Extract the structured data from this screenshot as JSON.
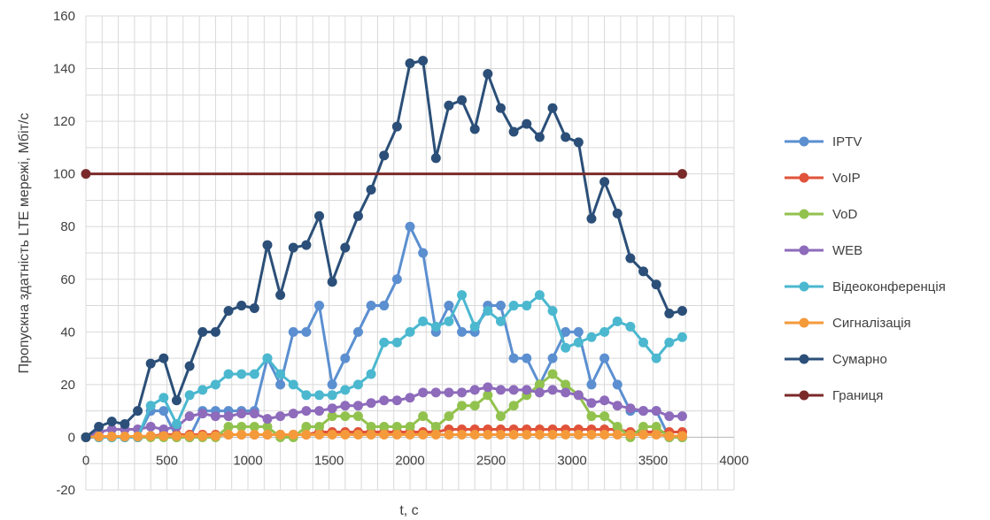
{
  "chart_data": {
    "type": "line",
    "xlabel": "t, с",
    "ylabel": "Пропускна здатність LTE мережі, Мбіт/с",
    "xlim": [
      0,
      4000
    ],
    "ylim": [
      -20,
      160
    ],
    "xticks": [
      "0",
      "500",
      "1000",
      "1500",
      "2000",
      "2500",
      "3000",
      "3500",
      "4000"
    ],
    "yticks": [
      "-20",
      "0",
      "20",
      "40",
      "60",
      "80",
      "100",
      "120",
      "140",
      "160"
    ],
    "grid": "on",
    "legend_position": "right",
    "x": [
      0,
      80,
      160,
      240,
      320,
      400,
      480,
      560,
      640,
      720,
      800,
      880,
      960,
      1040,
      1120,
      1200,
      1280,
      1360,
      1440,
      1520,
      1600,
      1680,
      1760,
      1840,
      1920,
      2000,
      2080,
      2160,
      2240,
      2320,
      2400,
      2480,
      2560,
      2640,
      2720,
      2800,
      2880,
      2960,
      3040,
      3120,
      3200,
      3280,
      3360,
      3440,
      3520,
      3600,
      3680
    ],
    "series": [
      {
        "name": "IPTV",
        "color": "#5b8fd0",
        "values": [
          0,
          0,
          0,
          0,
          0,
          10,
          10,
          0,
          0,
          10,
          10,
          10,
          10,
          10,
          30,
          20,
          40,
          40,
          50,
          20,
          30,
          40,
          50,
          50,
          60,
          80,
          70,
          40,
          50,
          40,
          40,
          50,
          50,
          30,
          30,
          20,
          30,
          40,
          40,
          20,
          30,
          20,
          10,
          10,
          10,
          0,
          0
        ]
      },
      {
        "name": "VoIP",
        "color": "#e0533a",
        "values": [
          0,
          0,
          0,
          0,
          0,
          0.5,
          1,
          1,
          1,
          1,
          1,
          1,
          1,
          1,
          1,
          1,
          1,
          1,
          2,
          2,
          2,
          2,
          2,
          2,
          2,
          2,
          2,
          2,
          3,
          3,
          3,
          3,
          3,
          3,
          3,
          3,
          3,
          3,
          3,
          3,
          3,
          3,
          2,
          2,
          2,
          2,
          2
        ]
      },
      {
        "name": "VoD",
        "color": "#92c24e",
        "values": [
          0,
          0,
          0,
          0,
          0,
          0,
          0,
          0,
          0,
          0,
          0,
          4,
          4,
          4,
          4,
          0,
          0,
          4,
          4,
          8,
          8,
          8,
          4,
          4,
          4,
          4,
          8,
          4,
          8,
          12,
          12,
          16,
          8,
          12,
          16,
          20,
          24,
          20,
          16,
          8,
          8,
          4,
          0,
          4,
          4,
          0,
          0
        ]
      },
      {
        "name": "WEB",
        "color": "#8e6bbb",
        "values": [
          0,
          2,
          3,
          3,
          3,
          4,
          3,
          4,
          8,
          9,
          8,
          8,
          9,
          9,
          7,
          8,
          9,
          10,
          10,
          11,
          12,
          12,
          13,
          14,
          14,
          15,
          17,
          17,
          17,
          17,
          18,
          19,
          18,
          18,
          18,
          17,
          18,
          17,
          16,
          13,
          14,
          12,
          11,
          10,
          10,
          8,
          8
        ]
      },
      {
        "name": "Відеоконференція",
        "color": "#4bb8cf",
        "values": [
          0,
          0,
          0,
          0,
          0,
          12,
          15,
          5,
          16,
          18,
          20,
          24,
          24,
          24,
          30,
          24,
          20,
          16,
          16,
          16,
          18,
          20,
          24,
          36,
          36,
          40,
          44,
          42,
          44,
          54,
          42,
          48,
          44,
          50,
          50,
          54,
          48,
          34,
          36,
          38,
          40,
          44,
          42,
          36,
          30,
          36,
          38
        ]
      },
      {
        "name": "Сигналізація",
        "color": "#f59a3b",
        "values": [
          0,
          0.3,
          0.3,
          0.3,
          0.3,
          0.5,
          0.5,
          0.5,
          0.5,
          0.5,
          0.5,
          1,
          1,
          1,
          1,
          1,
          1,
          1,
          1,
          1,
          1,
          1,
          1,
          1,
          1,
          1,
          1,
          1,
          1,
          1,
          1,
          1,
          1,
          1,
          1,
          1,
          1,
          1,
          1,
          1,
          1,
          1,
          1,
          1,
          1,
          0.5,
          0.5
        ]
      },
      {
        "name": "Сумарно",
        "color": "#2b4f78",
        "values": [
          0,
          4,
          6,
          5,
          10,
          28,
          30,
          14,
          27,
          40,
          40,
          48,
          50,
          49,
          73,
          54,
          72,
          73,
          84,
          59,
          72,
          84,
          94,
          107,
          118,
          142,
          143,
          106,
          126,
          128,
          117,
          138,
          125,
          116,
          119,
          114,
          125,
          114,
          112,
          83,
          97,
          85,
          68,
          63,
          58,
          47,
          48
        ]
      },
      {
        "name": "Границя",
        "color": "#7b2a2a",
        "line_only": true,
        "x": [
          0,
          3680
        ],
        "values": [
          100,
          100
        ]
      }
    ]
  }
}
